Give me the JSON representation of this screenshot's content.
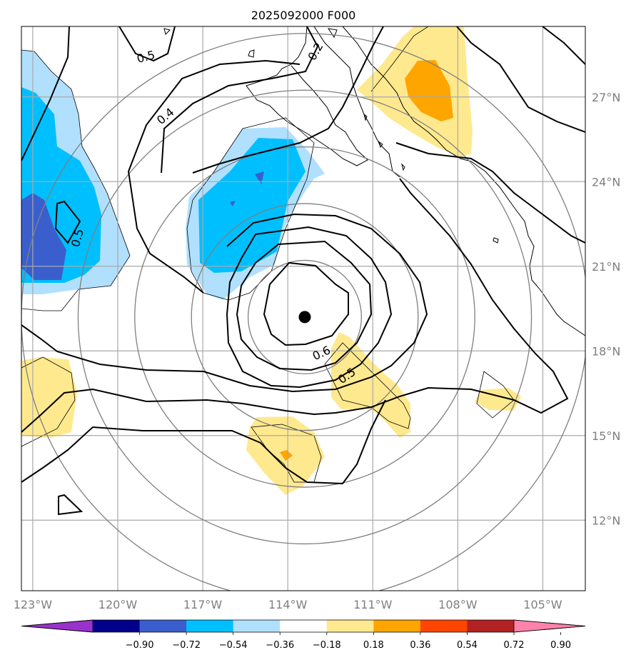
{
  "title": "2025092000 F000",
  "map": {
    "lon_range": [
      -123.4,
      -103.5
    ],
    "lat_range": [
      9.5,
      29.5
    ],
    "lon_ticks": [
      {
        "value": -123,
        "label": "123°W"
      },
      {
        "value": -120,
        "label": "120°W"
      },
      {
        "value": -117,
        "label": "117°W"
      },
      {
        "value": -114,
        "label": "114°W"
      },
      {
        "value": -111,
        "label": "111°W"
      },
      {
        "value": -108,
        "label": "108°W"
      },
      {
        "value": -105,
        "label": "105°W"
      }
    ],
    "lat_ticks": [
      {
        "value": 27,
        "label": "27°N"
      },
      {
        "value": 24,
        "label": "24°N"
      },
      {
        "value": 21,
        "label": "21°N"
      },
      {
        "value": 18,
        "label": "18°N"
      },
      {
        "value": 15,
        "label": "15°N"
      },
      {
        "value": 12,
        "label": "12°N"
      }
    ],
    "gridlines": true,
    "storm_center": {
      "lon": -113.4,
      "lat": 19.2
    },
    "range_rings_deg": [
      2,
      4,
      6,
      8,
      10
    ],
    "contour_labels": [
      {
        "text": "0.5",
        "lon": -119.0,
        "lat": 28.4,
        "angle": -15
      },
      {
        "text": "0.2",
        "lon": -113.0,
        "lat": 28.6,
        "angle": -60
      },
      {
        "text": "0.4",
        "lon": -118.3,
        "lat": 26.3,
        "angle": -40
      },
      {
        "text": "0.5",
        "lon": -121.4,
        "lat": 22.0,
        "angle": -75
      },
      {
        "text": "0.6",
        "lon": -112.8,
        "lat": 17.9,
        "angle": -25
      },
      {
        "text": "0.5",
        "lon": -111.9,
        "lat": 17.1,
        "angle": -35
      }
    ]
  },
  "colorbar": {
    "ticks": [
      "−0.90",
      "−0.72",
      "−0.54",
      "−0.36",
      "−0.18",
      "0.18",
      "0.36",
      "0.54",
      "0.72",
      "0.90"
    ],
    "colors": [
      "#9932cc",
      "#00008b",
      "#3a5fcd",
      "#00bfff",
      "#b0e0fe",
      "#ffffff",
      "#ffe98f",
      "#ffa500",
      "#ff4500",
      "#b22222",
      "#ff82ab"
    ]
  }
}
